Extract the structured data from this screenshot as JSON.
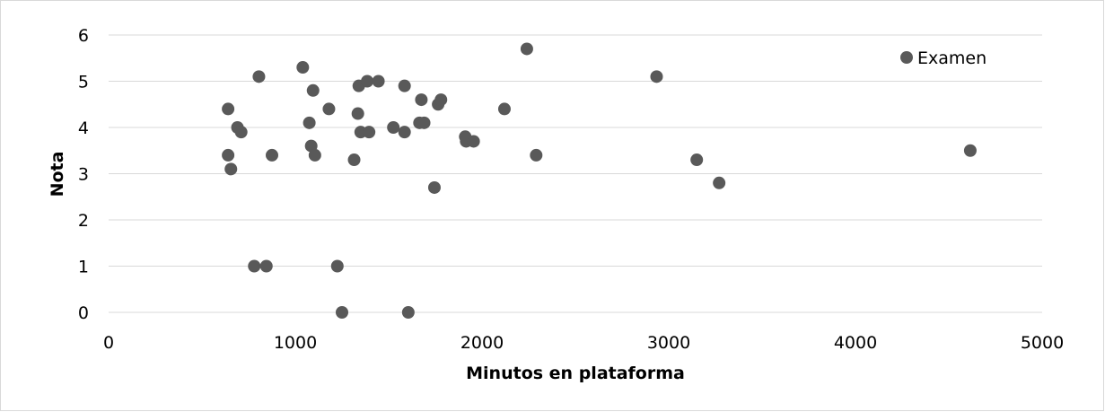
{
  "chart_data": {
    "type": "scatter",
    "xlabel": "Minutos en plataforma",
    "ylabel": "Nota",
    "xlim": [
      0,
      5000
    ],
    "ylim": [
      0,
      6
    ],
    "x_ticks": [
      "0",
      "1000",
      "2000",
      "3000",
      "4000",
      "5000"
    ],
    "y_ticks": [
      "0",
      "1",
      "2",
      "3",
      "4",
      "5",
      "6"
    ],
    "grid": "horizontal",
    "legend_position": "top-right",
    "series": [
      {
        "name": "Examen",
        "color": "#595959",
        "points": [
          [
            640,
            4.4
          ],
          [
            640,
            3.4
          ],
          [
            655,
            3.1
          ],
          [
            690,
            4.0
          ],
          [
            710,
            3.9
          ],
          [
            780,
            1.0
          ],
          [
            805,
            5.1
          ],
          [
            845,
            1.0
          ],
          [
            875,
            3.4
          ],
          [
            1040,
            5.3
          ],
          [
            1075,
            4.1
          ],
          [
            1085,
            3.6
          ],
          [
            1095,
            4.8
          ],
          [
            1105,
            3.4
          ],
          [
            1180,
            4.4
          ],
          [
            1225,
            1.0
          ],
          [
            1250,
            0.0
          ],
          [
            1315,
            3.3
          ],
          [
            1335,
            4.3
          ],
          [
            1340,
            4.9
          ],
          [
            1350,
            3.9
          ],
          [
            1385,
            5.0
          ],
          [
            1395,
            3.9
          ],
          [
            1445,
            5.0
          ],
          [
            1525,
            4.0
          ],
          [
            1585,
            4.9
          ],
          [
            1585,
            3.9
          ],
          [
            1605,
            0.0
          ],
          [
            1665,
            4.1
          ],
          [
            1675,
            4.6
          ],
          [
            1690,
            4.1
          ],
          [
            1745,
            2.7
          ],
          [
            1765,
            4.5
          ],
          [
            1780,
            4.6
          ],
          [
            1910,
            3.8
          ],
          [
            1915,
            3.7
          ],
          [
            1955,
            3.7
          ],
          [
            2120,
            4.4
          ],
          [
            2240,
            5.7
          ],
          [
            2290,
            3.4
          ],
          [
            2935,
            5.1
          ],
          [
            3150,
            3.3
          ],
          [
            3270,
            2.8
          ],
          [
            4615,
            3.5
          ]
        ]
      }
    ]
  }
}
